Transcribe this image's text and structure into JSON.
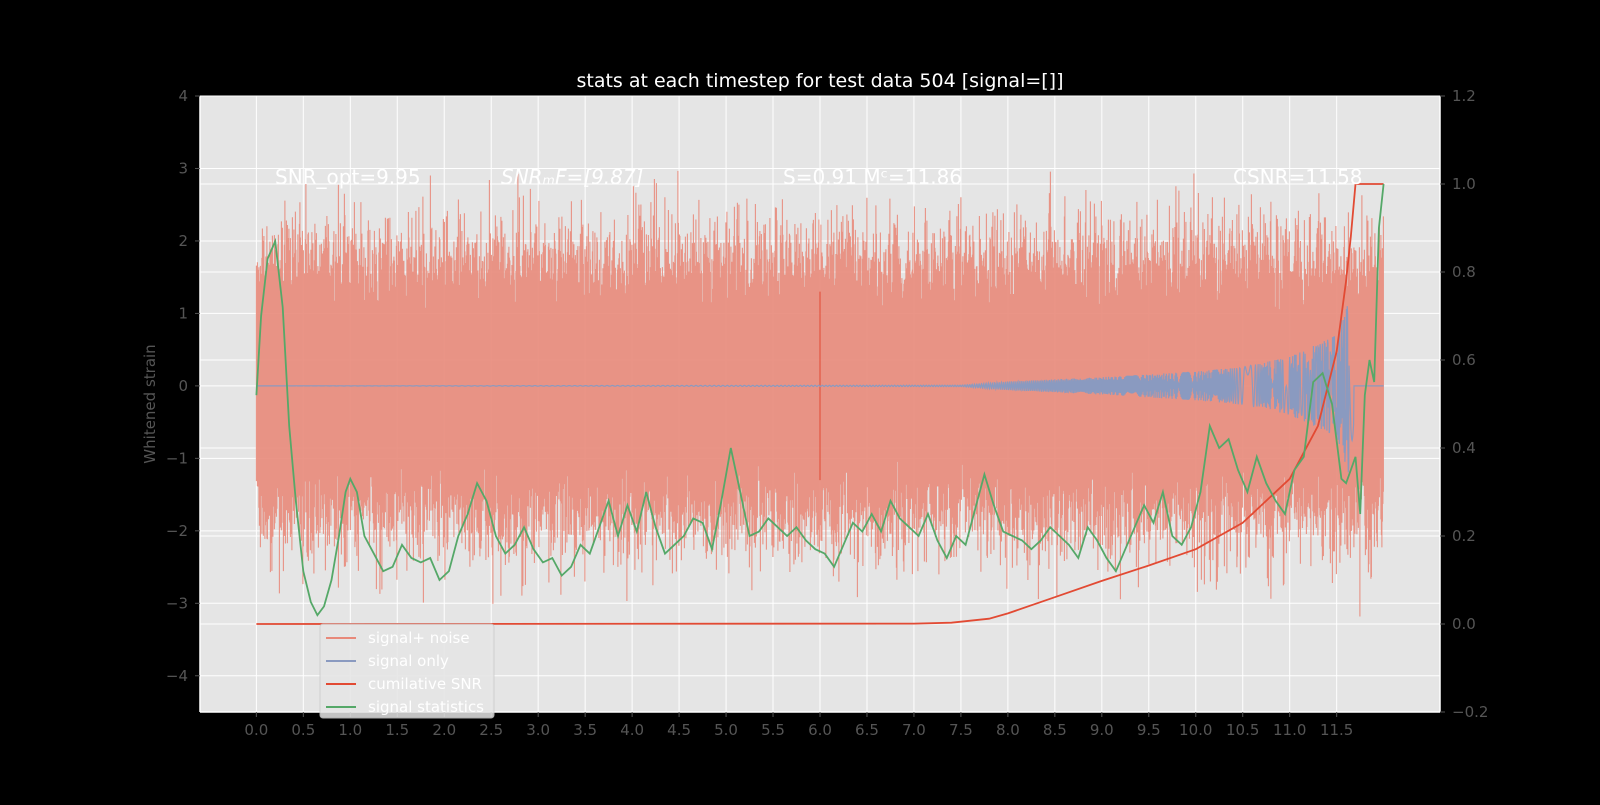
{
  "chart_data": {
    "type": "line",
    "title": "stats at each timestep for test data 504 [signal=[]]",
    "ylabel": "Whitened strain",
    "xlim": [
      -0.6,
      12.6
    ],
    "ylim": [
      -4.5,
      4
    ],
    "ylim_right": [
      -0.2,
      1.2
    ],
    "x_ticks": [
      0.0,
      0.5,
      1.0,
      1.5,
      2.0,
      2.5,
      3.0,
      3.5,
      4.0,
      4.5,
      5.0,
      5.5,
      6.0,
      6.5,
      7.0,
      7.5,
      8.0,
      8.5,
      9.0,
      9.5,
      10.0,
      10.5,
      11.0,
      11.5
    ],
    "x_tick_labels": [
      "0.0",
      "0.5",
      "1.0",
      "1.5",
      "2.0",
      "2.5",
      "3.0",
      "3.5",
      "4.0",
      "4.5",
      "5.0",
      "5.5",
      "6.0",
      "6.5",
      "7.0",
      "7.5",
      "8.0",
      "8.5",
      "9.0",
      "9.5",
      "10.0",
      "10.5",
      "11.0",
      "11.5"
    ],
    "y_ticks": [
      -4,
      -3,
      -2,
      -1,
      0,
      1,
      2,
      3,
      4
    ],
    "y_tick_labels": [
      "−4",
      "−3",
      "−2",
      "−1",
      "0",
      "1",
      "2",
      "3",
      "4"
    ],
    "y2_ticks": [
      -0.2,
      0.0,
      0.2,
      0.4,
      0.6,
      0.8,
      1.0,
      1.2
    ],
    "y2_tick_labels": [
      "−0.2",
      "0.0",
      "0.2",
      "0.4",
      "0.6",
      "0.8",
      "1.0",
      "1.2"
    ],
    "grid": true,
    "legend_position": "lower-left",
    "annotations": {
      "snr_opt": "SNR_opt=9.95",
      "snr_mf": "SNRₘF=[9.87]",
      "s_mc": "S=0.91  Mᶜ=11.86",
      "csnr": "CSNR=11.58"
    },
    "series": [
      {
        "name": "signal+ noise",
        "color": "#e8897a",
        "axis": "left",
        "kind": "noise",
        "x_range": [
          0.0,
          12.0
        ],
        "approx_amplitude_range": [
          -4.1,
          3.6
        ],
        "note_spike_at": [
          6.0,
          -1.3,
          1.3
        ]
      },
      {
        "name": "signal only",
        "color": "#8a9ac0",
        "axis": "left",
        "kind": "chirp",
        "x_range": [
          0.0,
          12.0
        ],
        "envelope": {
          "x": [
            0,
            7.5,
            8.0,
            9.0,
            10.0,
            10.5,
            11.0,
            11.5,
            11.65,
            11.7,
            12.0
          ],
          "amp": [
            0.0,
            0.01,
            0.06,
            0.12,
            0.2,
            0.26,
            0.4,
            0.7,
            1.3,
            0.02,
            0.0
          ]
        }
      },
      {
        "name": "cumilative SNR",
        "color": "#e24a33",
        "axis": "right",
        "x": [
          0.0,
          7.0,
          7.4,
          7.8,
          8.0,
          8.5,
          9.0,
          9.5,
          10.0,
          10.5,
          11.0,
          11.3,
          11.5,
          11.6,
          11.65,
          11.7,
          12.0
        ],
        "y": [
          0.0,
          0.001,
          0.003,
          0.012,
          0.024,
          0.061,
          0.098,
          0.133,
          0.17,
          0.23,
          0.33,
          0.45,
          0.62,
          0.78,
          0.88,
          1.0,
          1.0
        ]
      },
      {
        "name": "signal statistics",
        "color": "#55a868",
        "axis": "right",
        "x": [
          0.0,
          0.05,
          0.12,
          0.2,
          0.28,
          0.35,
          0.42,
          0.5,
          0.58,
          0.65,
          0.72,
          0.8,
          0.88,
          0.95,
          1.0,
          1.07,
          1.15,
          1.25,
          1.35,
          1.45,
          1.55,
          1.65,
          1.75,
          1.85,
          1.95,
          2.05,
          2.15,
          2.25,
          2.35,
          2.45,
          2.55,
          2.65,
          2.75,
          2.85,
          2.95,
          3.05,
          3.15,
          3.25,
          3.35,
          3.45,
          3.55,
          3.65,
          3.75,
          3.85,
          3.95,
          4.05,
          4.15,
          4.25,
          4.35,
          4.45,
          4.55,
          4.65,
          4.75,
          4.85,
          4.95,
          5.05,
          5.15,
          5.25,
          5.35,
          5.45,
          5.55,
          5.65,
          5.75,
          5.85,
          5.95,
          6.05,
          6.15,
          6.25,
          6.35,
          6.45,
          6.55,
          6.65,
          6.75,
          6.85,
          6.95,
          7.05,
          7.15,
          7.25,
          7.35,
          7.45,
          7.55,
          7.65,
          7.75,
          7.85,
          7.95,
          8.05,
          8.15,
          8.25,
          8.35,
          8.45,
          8.55,
          8.65,
          8.75,
          8.85,
          8.95,
          9.05,
          9.15,
          9.25,
          9.35,
          9.45,
          9.55,
          9.65,
          9.75,
          9.85,
          9.95,
          10.05,
          10.15,
          10.25,
          10.35,
          10.45,
          10.55,
          10.65,
          10.75,
          10.85,
          10.95,
          11.05,
          11.15,
          11.25,
          11.35,
          11.45,
          11.55,
          11.6,
          11.65,
          11.7,
          11.75,
          11.8,
          11.85,
          11.9,
          11.95,
          12.0
        ],
        "y": [
          0.52,
          0.7,
          0.83,
          0.87,
          0.72,
          0.45,
          0.28,
          0.12,
          0.05,
          0.02,
          0.04,
          0.1,
          0.2,
          0.3,
          0.33,
          0.3,
          0.2,
          0.16,
          0.12,
          0.13,
          0.18,
          0.15,
          0.14,
          0.15,
          0.1,
          0.12,
          0.2,
          0.25,
          0.32,
          0.28,
          0.2,
          0.16,
          0.18,
          0.22,
          0.17,
          0.14,
          0.15,
          0.11,
          0.13,
          0.18,
          0.16,
          0.22,
          0.28,
          0.2,
          0.27,
          0.21,
          0.3,
          0.22,
          0.16,
          0.18,
          0.2,
          0.24,
          0.23,
          0.17,
          0.28,
          0.4,
          0.3,
          0.2,
          0.21,
          0.24,
          0.22,
          0.2,
          0.22,
          0.19,
          0.17,
          0.16,
          0.13,
          0.18,
          0.23,
          0.21,
          0.25,
          0.21,
          0.28,
          0.24,
          0.22,
          0.2,
          0.25,
          0.19,
          0.15,
          0.2,
          0.18,
          0.26,
          0.34,
          0.27,
          0.21,
          0.2,
          0.19,
          0.17,
          0.19,
          0.22,
          0.2,
          0.18,
          0.15,
          0.22,
          0.19,
          0.15,
          0.12,
          0.17,
          0.22,
          0.27,
          0.23,
          0.3,
          0.2,
          0.18,
          0.22,
          0.3,
          0.45,
          0.4,
          0.42,
          0.35,
          0.3,
          0.38,
          0.32,
          0.28,
          0.25,
          0.35,
          0.38,
          0.55,
          0.57,
          0.5,
          0.33,
          0.32,
          0.35,
          0.38,
          0.25,
          0.52,
          0.6,
          0.55,
          0.9,
          1.0
        ]
      }
    ]
  }
}
